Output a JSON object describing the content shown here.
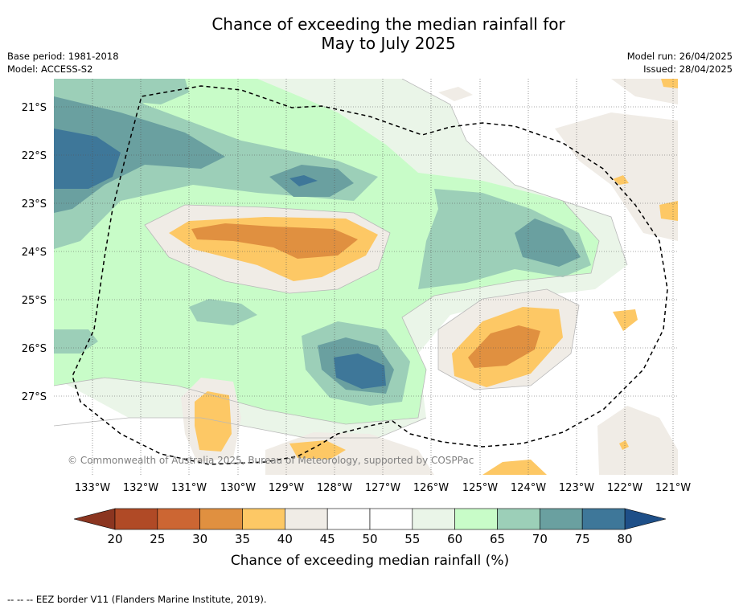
{
  "title_line1": "Chance of exceeding the median rainfall for",
  "title_line2": "May to July 2025",
  "base_period": "Base period: 1981-2018",
  "model": "Model: ACCESS-S2",
  "model_run": "Model run: 26/04/2025",
  "issued": "Issued: 28/04/2025",
  "copyright": "© Commonwealth of Australia 2025, Bureau of Meteorology, supported by COSPPac",
  "footer": "-- -- -- EEZ border V11 (Flanders Marine Institute, 2019).",
  "map": {
    "lat_labels": [
      "21°S",
      "22°S",
      "23°S",
      "24°S",
      "25°S",
      "26°S",
      "27°S"
    ],
    "lon_labels": [
      "133°W",
      "132°W",
      "131°W",
      "130°W",
      "129°W",
      "128°W",
      "127°W",
      "126°W",
      "125°W",
      "124°W",
      "123°W",
      "122°W",
      "121°W"
    ]
  },
  "colorbar": {
    "title": "Chance of exceeding median rainfall (%)",
    "ticks": [
      "20",
      "25",
      "30",
      "35",
      "40",
      "45",
      "50",
      "55",
      "60",
      "65",
      "70",
      "75",
      "80"
    ],
    "colors": [
      "#b04a26",
      "#cc6633",
      "#e09040",
      "#fdc865",
      "#f0ece6",
      "#ffffff",
      "#ffffff",
      "#eaf5e8",
      "#c8fcc8",
      "#9ccfb8",
      "#6aa0a0",
      "#3e7799"
    ],
    "low_color": "#8b3520",
    "high_color": "#1e4f88"
  }
}
